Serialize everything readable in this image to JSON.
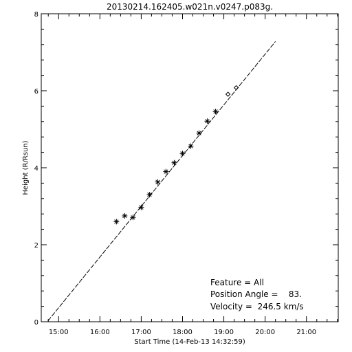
{
  "chart_data": {
    "type": "scatter",
    "title": "20130214.162405.w021n.v0247.p083g.",
    "xlabel": "Start Time (14-Feb-13 14:32:59)",
    "ylabel": "Height (R/Rsun)",
    "xlim": [
      14.58,
      21.77
    ],
    "ylim": [
      0,
      8
    ],
    "x_ticks": [
      15,
      16,
      17,
      18,
      19,
      20,
      21
    ],
    "x_tick_labels": [
      "15:00",
      "16:00",
      "17:00",
      "18:00",
      "19:00",
      "20:00",
      "21:00"
    ],
    "y_ticks": [
      0,
      2,
      4,
      6,
      8
    ],
    "y_tick_labels": [
      "0",
      "2",
      "4",
      "6",
      "8"
    ],
    "grid": false,
    "series": [
      {
        "marker": "asterisk",
        "x": [
          16.4,
          16.6,
          16.8,
          17.0,
          17.2,
          17.4,
          17.6,
          17.8,
          18.0,
          18.2,
          18.4,
          18.6,
          18.8
        ],
        "y": [
          2.6,
          2.75,
          2.71,
          2.97,
          3.3,
          3.63,
          3.9,
          4.13,
          4.37,
          4.56,
          4.9,
          5.21,
          5.46
        ]
      },
      {
        "marker": "diamond",
        "x": [
          19.1,
          19.3
        ],
        "y": [
          5.91,
          6.08
        ]
      }
    ],
    "fit_line": {
      "style": "dashed",
      "x": [
        14.74,
        20.25
      ],
      "y": [
        0.02,
        7.28
      ]
    },
    "annotations": [
      {
        "key": "feature",
        "text": "Feature = All"
      },
      {
        "key": "position_angle",
        "text": "Position Angle =    83."
      },
      {
        "key": "velocity",
        "text": "Velocity =  246.5 km/s"
      }
    ]
  }
}
